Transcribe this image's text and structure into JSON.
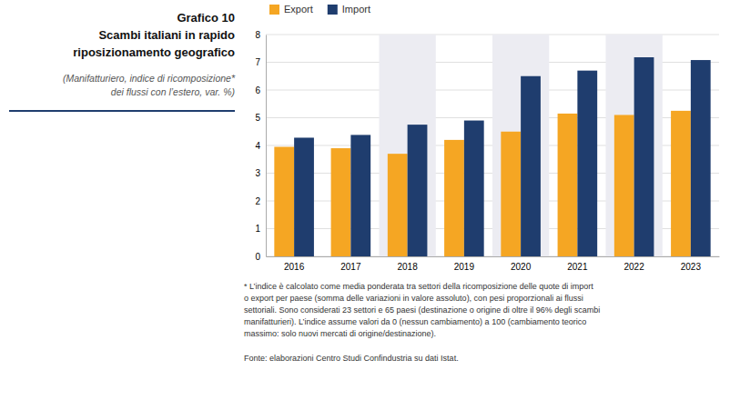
{
  "chart_data": {
    "type": "bar",
    "title": [
      "Grafico 10",
      "Scambi italiani in rapido",
      "riposizionamento geografico"
    ],
    "subtitle": [
      "(Manifatturiero, indice di ricomposizione*",
      "dei flussi con l’estero, var. %)"
    ],
    "categories": [
      "2016",
      "2017",
      "2018",
      "2019",
      "2020",
      "2021",
      "2022",
      "2023"
    ],
    "series": [
      {
        "name": "Export",
        "color": "#F5A623",
        "values": [
          3.95,
          3.9,
          3.7,
          4.2,
          4.5,
          5.15,
          5.1,
          5.25
        ]
      },
      {
        "name": "Import",
        "color": "#1F3D6E",
        "values": [
          4.28,
          4.38,
          4.75,
          4.9,
          6.5,
          6.7,
          7.18,
          7.08
        ]
      }
    ],
    "shaded": [
      "2018",
      "2020",
      "2022"
    ],
    "ylim": [
      0,
      8
    ],
    "yticks": [
      0,
      1,
      2,
      3,
      4,
      5,
      6,
      7,
      8
    ],
    "grid": true,
    "legend": "top-left",
    "footnote": [
      "* L’indice è calcolato come media ponderata tra settori della ricomposizione delle quote di import",
      "o export per paese (somma delle variazioni in valore assoluto), con pesi proporzionali ai flussi",
      "settoriali. Sono considerati 23 settori e 65 paesi (destinazione o origine di oltre il 96% degli scambi",
      "manifatturieri). L’indice assume valori da 0 (nessun cambiamento) a 100 (cambiamento teorico",
      "massimo: solo nuovi mercati di origine/destinazione)."
    ],
    "source": "Fonte: elaborazioni Centro Studi Confindustria su dati Istat."
  }
}
